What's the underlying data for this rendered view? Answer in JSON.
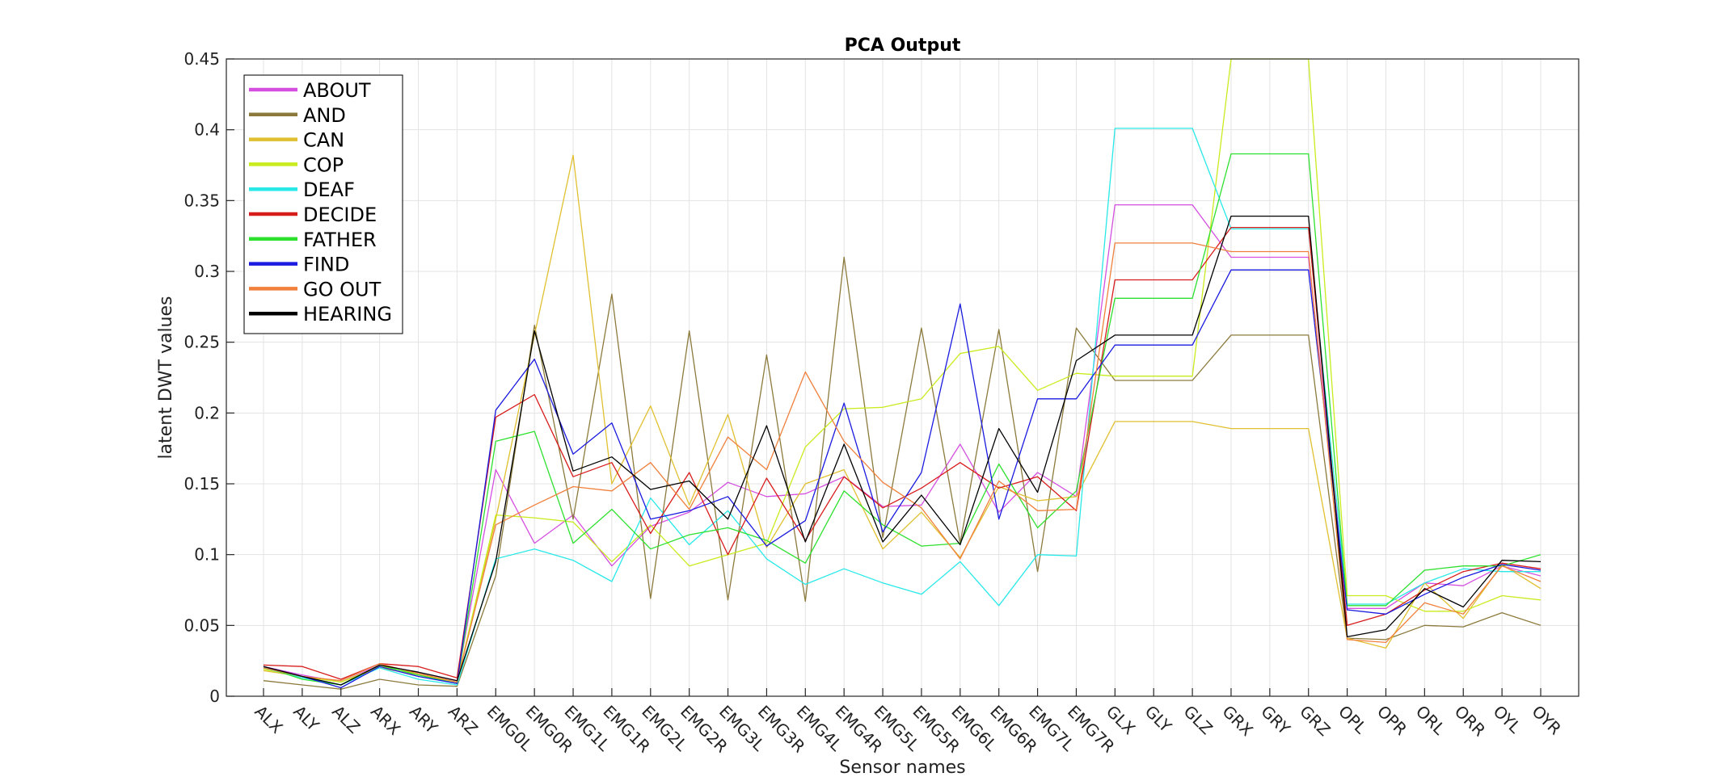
{
  "chart_data": {
    "type": "line",
    "title": "PCA Output",
    "xlabel": "Sensor names",
    "ylabel": "latent DWT values",
    "ylim": [
      0,
      0.45
    ],
    "yticks": [
      0,
      0.05,
      0.1,
      0.15,
      0.2,
      0.25,
      0.3,
      0.35,
      0.4,
      0.45
    ],
    "ytick_labels": [
      "0",
      "0.05",
      "0.1",
      "0.15",
      "0.2",
      "0.25",
      "0.3",
      "0.35",
      "0.4",
      "0.45"
    ],
    "grid": true,
    "legend_position": "top-left",
    "categories": [
      "ALX",
      "ALY",
      "ALZ",
      "ARX",
      "ARY",
      "ARZ",
      "EMG0L",
      "EMG0R",
      "EMG1L",
      "EMG1R",
      "EMG2L",
      "EMG2R",
      "EMG3L",
      "EMG3R",
      "EMG4L",
      "EMG4R",
      "EMG5L",
      "EMG5R",
      "EMG6L",
      "EMG6R",
      "EMG7L",
      "EMG7R",
      "GLX",
      "GLY",
      "GLZ",
      "GRX",
      "GRY",
      "GRZ",
      "OPL",
      "OPR",
      "ORL",
      "ORR",
      "OYL",
      "OYR"
    ],
    "series": [
      {
        "name": "ABOUT",
        "color": "#d44fe0",
        "values": [
          0.021,
          0.015,
          0.01,
          0.022,
          0.017,
          0.011,
          0.16,
          0.108,
          0.128,
          0.092,
          0.12,
          0.13,
          0.151,
          0.141,
          0.143,
          0.155,
          0.134,
          0.135,
          0.178,
          0.13,
          0.158,
          0.141,
          0.347,
          0.347,
          0.347,
          0.31,
          0.31,
          0.31,
          0.062,
          0.062,
          0.08,
          0.078,
          0.092,
          0.085
        ]
      },
      {
        "name": "AND",
        "color": "#8c7a3c",
        "values": [
          0.011,
          0.008,
          0.005,
          0.012,
          0.008,
          0.007,
          0.085,
          0.262,
          0.125,
          0.284,
          0.069,
          0.258,
          0.068,
          0.241,
          0.067,
          0.31,
          0.112,
          0.26,
          0.108,
          0.259,
          0.088,
          0.26,
          0.223,
          0.223,
          0.223,
          0.255,
          0.255,
          0.255,
          0.041,
          0.04,
          0.05,
          0.049,
          0.059,
          0.05
        ]
      },
      {
        "name": "CAN",
        "color": "#e0c030",
        "values": [
          0.018,
          0.014,
          0.01,
          0.02,
          0.015,
          0.01,
          0.125,
          0.255,
          0.382,
          0.15,
          0.205,
          0.135,
          0.199,
          0.105,
          0.15,
          0.16,
          0.104,
          0.13,
          0.098,
          0.148,
          0.138,
          0.141,
          0.194,
          0.194,
          0.194,
          0.189,
          0.189,
          0.189,
          0.041,
          0.034,
          0.08,
          0.055,
          0.093,
          0.076
        ]
      },
      {
        "name": "COP",
        "color": "#c8ec1e",
        "values": [
          0.019,
          0.014,
          0.01,
          0.021,
          0.016,
          0.01,
          0.128,
          0.126,
          0.123,
          0.095,
          0.121,
          0.092,
          0.1,
          0.108,
          0.176,
          0.203,
          0.204,
          0.21,
          0.242,
          0.247,
          0.216,
          0.228,
          0.226,
          0.226,
          0.226,
          0.45,
          0.45,
          0.45,
          0.071,
          0.071,
          0.06,
          0.06,
          0.071,
          0.068
        ]
      },
      {
        "name": "DEAF",
        "color": "#28e8e8",
        "values": [
          0.02,
          0.013,
          0.008,
          0.02,
          0.012,
          0.008,
          0.097,
          0.104,
          0.096,
          0.081,
          0.14,
          0.107,
          0.131,
          0.097,
          0.079,
          0.09,
          0.08,
          0.072,
          0.095,
          0.064,
          0.1,
          0.099,
          0.401,
          0.401,
          0.401,
          0.33,
          0.33,
          0.33,
          0.065,
          0.065,
          0.08,
          0.09,
          0.088,
          0.088
        ]
      },
      {
        "name": "DECIDE",
        "color": "#d81c1c",
        "values": [
          0.022,
          0.021,
          0.012,
          0.023,
          0.021,
          0.013,
          0.197,
          0.213,
          0.155,
          0.165,
          0.115,
          0.158,
          0.1,
          0.154,
          0.11,
          0.155,
          0.133,
          0.147,
          0.165,
          0.147,
          0.155,
          0.131,
          0.294,
          0.294,
          0.294,
          0.331,
          0.331,
          0.331,
          0.05,
          0.058,
          0.075,
          0.088,
          0.094,
          0.09
        ]
      },
      {
        "name": "FATHER",
        "color": "#2ee02e",
        "values": [
          0.021,
          0.012,
          0.008,
          0.022,
          0.015,
          0.009,
          0.18,
          0.187,
          0.108,
          0.132,
          0.104,
          0.114,
          0.119,
          0.11,
          0.094,
          0.145,
          0.121,
          0.106,
          0.108,
          0.164,
          0.119,
          0.145,
          0.281,
          0.281,
          0.281,
          0.383,
          0.383,
          0.383,
          0.064,
          0.064,
          0.089,
          0.092,
          0.092,
          0.1
        ]
      },
      {
        "name": "FIND",
        "color": "#1a1ae0",
        "values": [
          0.021,
          0.014,
          0.006,
          0.021,
          0.014,
          0.009,
          0.202,
          0.238,
          0.171,
          0.193,
          0.125,
          0.131,
          0.141,
          0.106,
          0.124,
          0.207,
          0.116,
          0.158,
          0.277,
          0.125,
          0.21,
          0.21,
          0.248,
          0.248,
          0.248,
          0.301,
          0.301,
          0.301,
          0.061,
          0.058,
          0.072,
          0.084,
          0.093,
          0.089
        ]
      },
      {
        "name": "GO OUT",
        "color": "#f0803c",
        "values": [
          0.02,
          0.014,
          0.011,
          0.023,
          0.016,
          0.01,
          0.121,
          0.135,
          0.148,
          0.145,
          0.165,
          0.132,
          0.183,
          0.16,
          0.229,
          0.18,
          0.151,
          0.133,
          0.097,
          0.152,
          0.131,
          0.132,
          0.32,
          0.32,
          0.32,
          0.314,
          0.314,
          0.314,
          0.04,
          0.038,
          0.066,
          0.058,
          0.092,
          0.081
        ]
      },
      {
        "name": "HEARING",
        "color": "#000000",
        "values": [
          0.021,
          0.014,
          0.008,
          0.022,
          0.017,
          0.011,
          0.095,
          0.258,
          0.159,
          0.169,
          0.146,
          0.152,
          0.125,
          0.191,
          0.109,
          0.178,
          0.109,
          0.142,
          0.107,
          0.189,
          0.144,
          0.237,
          0.255,
          0.255,
          0.255,
          0.339,
          0.339,
          0.339,
          0.042,
          0.047,
          0.076,
          0.063,
          0.096,
          0.095
        ]
      }
    ]
  }
}
